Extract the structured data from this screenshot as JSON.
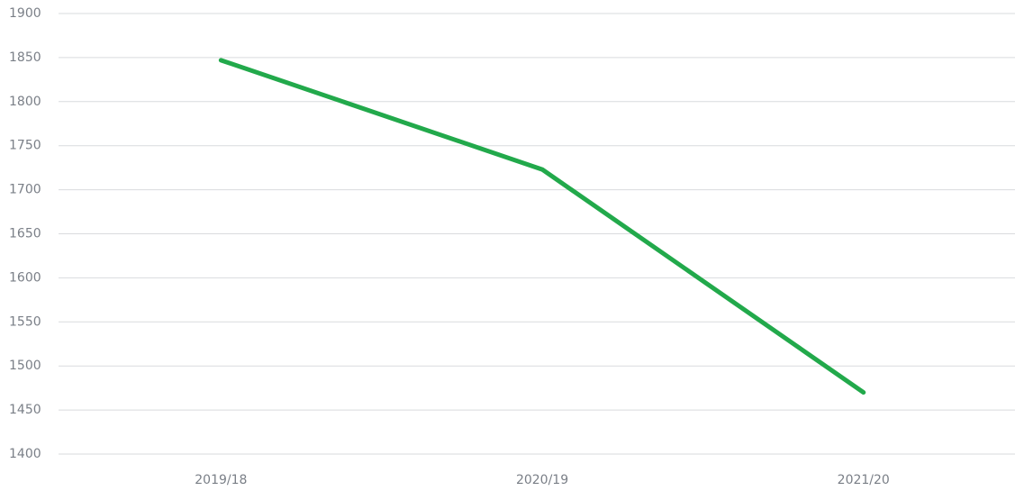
{
  "chart_data": {
    "type": "line",
    "categories": [
      "2019/18",
      "2020/19",
      "2021/20"
    ],
    "series": [
      {
        "name": null,
        "color": "#22a94b",
        "values": [
          1847,
          1723,
          1470
        ]
      }
    ],
    "ylim": [
      1400,
      1900
    ],
    "yticks": [
      1400,
      1450,
      1500,
      1550,
      1600,
      1650,
      1700,
      1750,
      1800,
      1850,
      1900
    ],
    "grid": true
  }
}
